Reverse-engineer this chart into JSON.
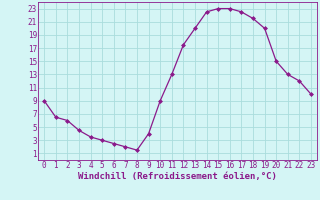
{
  "x": [
    0,
    1,
    2,
    3,
    4,
    5,
    6,
    7,
    8,
    9,
    10,
    11,
    12,
    13,
    14,
    15,
    16,
    17,
    18,
    19,
    20,
    21,
    22,
    23
  ],
  "y": [
    9,
    6.5,
    6,
    4.5,
    3.5,
    3,
    2.5,
    2,
    1.5,
    4,
    9,
    13,
    17.5,
    20,
    22.5,
    23,
    23,
    22.5,
    21.5,
    20,
    15,
    13,
    12,
    10
  ],
  "line_color": "#8B1A8B",
  "marker": "D",
  "marker_size": 2,
  "bg_color": "#d4f5f5",
  "grid_color": "#aadddd",
  "xlabel": "Windchill (Refroidissement éolien,°C)",
  "xlabel_fontsize": 6.5,
  "yticks": [
    1,
    3,
    5,
    7,
    9,
    11,
    13,
    15,
    17,
    19,
    21,
    23
  ],
  "xticks": [
    0,
    1,
    2,
    3,
    4,
    5,
    6,
    7,
    8,
    9,
    10,
    11,
    12,
    13,
    14,
    15,
    16,
    17,
    18,
    19,
    20,
    21,
    22,
    23
  ],
  "ylim": [
    0,
    24
  ],
  "xlim": [
    -0.5,
    23.5
  ],
  "tick_fontsize": 5.5,
  "spine_color": "#8B1A8B",
  "linewidth": 0.9
}
